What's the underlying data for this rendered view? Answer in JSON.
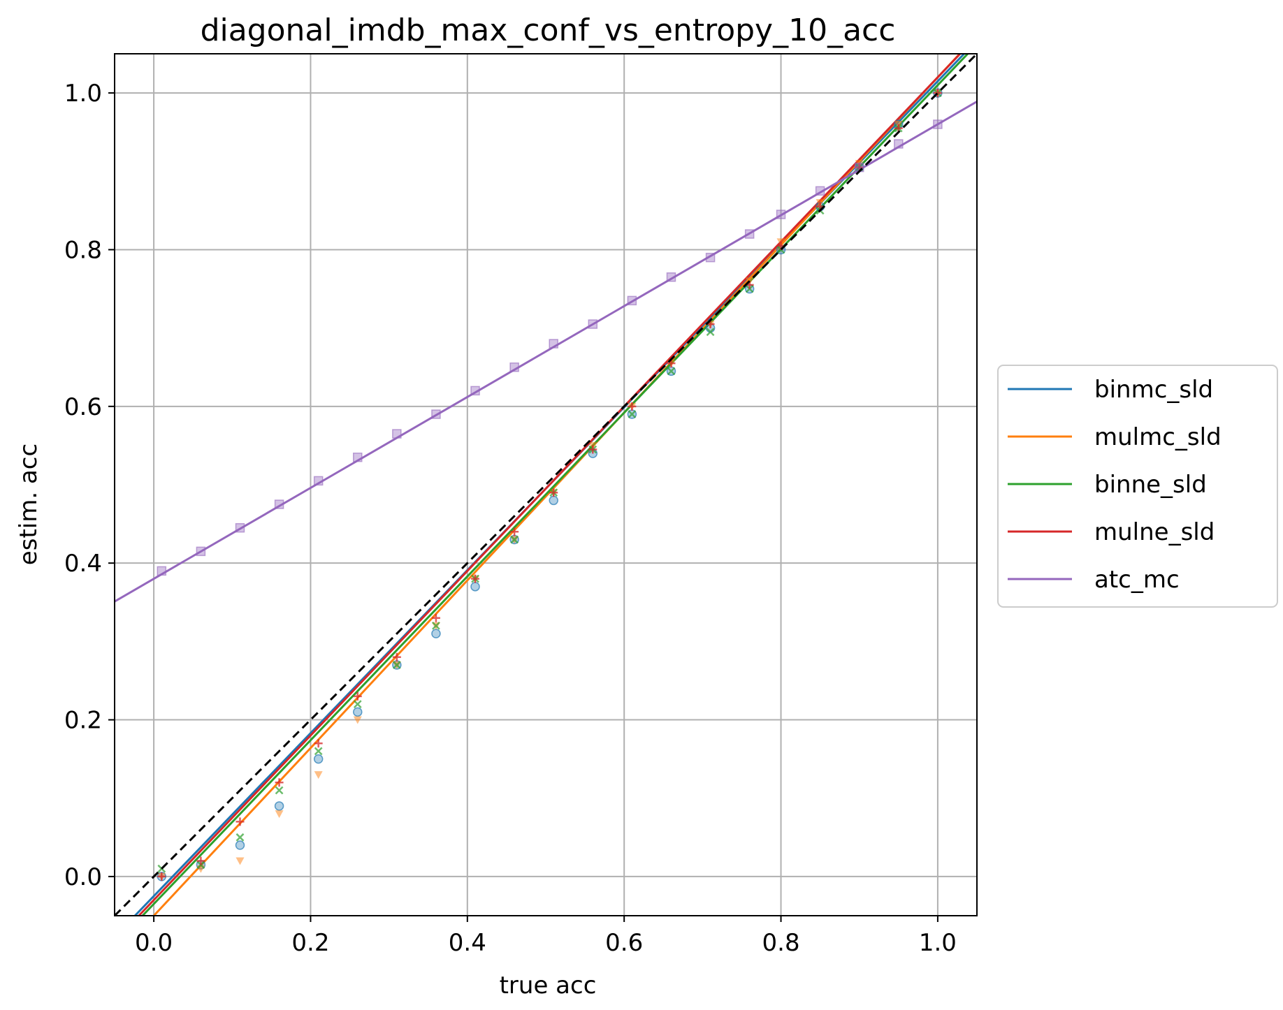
{
  "chart_data": {
    "type": "scatter",
    "title": "diagonal_imdb_max_conf_vs_entropy_10_acc",
    "xlabel": "true acc",
    "ylabel": "estim. acc",
    "xlim": [
      -0.05,
      1.05
    ],
    "ylim": [
      -0.05,
      1.05
    ],
    "x_ticks": [
      0.0,
      0.2,
      0.4,
      0.6,
      0.8,
      1.0
    ],
    "x_tick_labels": [
      "0.0",
      "0.2",
      "0.4",
      "0.6",
      "0.8",
      "1.0"
    ],
    "y_ticks": [
      0.0,
      0.2,
      0.4,
      0.6,
      0.8,
      1.0
    ],
    "y_tick_labels": [
      "0.0",
      "0.2",
      "0.4",
      "0.6",
      "0.8",
      "1.0"
    ],
    "grid": true,
    "legend_position": "outside-right",
    "reference_line": {
      "style": "dashed",
      "color": "#000000",
      "from": [
        -0.05,
        -0.05
      ],
      "to": [
        1.05,
        1.05
      ]
    },
    "x": [
      0.01,
      0.06,
      0.11,
      0.16,
      0.21,
      0.26,
      0.31,
      0.36,
      0.41,
      0.46,
      0.51,
      0.56,
      0.61,
      0.66,
      0.71,
      0.76,
      0.8,
      0.85,
      0.9,
      0.95,
      1.0
    ],
    "series": [
      {
        "name": "binmc_sld",
        "color": "#1f77b4",
        "marker": "circle",
        "fit": {
          "slope": 1.04,
          "intercept": -0.025
        },
        "values": [
          0.0,
          0.015,
          0.04,
          0.09,
          0.15,
          0.21,
          0.27,
          0.31,
          0.37,
          0.43,
          0.48,
          0.54,
          0.59,
          0.645,
          0.7,
          0.75,
          0.8,
          0.855,
          0.905,
          0.96,
          1.0
        ]
      },
      {
        "name": "mulmc_sld",
        "color": "#ff7f0e",
        "marker": "triangle-down",
        "fit": {
          "slope": 1.07,
          "intercept": -0.05
        },
        "values": [
          0.0,
          0.01,
          0.02,
          0.08,
          0.13,
          0.2,
          0.27,
          0.32,
          0.38,
          0.43,
          0.49,
          0.55,
          0.6,
          0.655,
          0.705,
          0.76,
          0.81,
          0.86,
          0.91,
          0.96,
          1.0
        ]
      },
      {
        "name": "binne_sld",
        "color": "#2ca02c",
        "marker": "x",
        "fit": {
          "slope": 1.045,
          "intercept": -0.035
        },
        "values": [
          0.01,
          0.015,
          0.05,
          0.11,
          0.16,
          0.22,
          0.27,
          0.32,
          0.38,
          0.43,
          0.49,
          0.545,
          0.59,
          0.645,
          0.695,
          0.75,
          0.8,
          0.85,
          0.905,
          0.955,
          1.0
        ]
      },
      {
        "name": "mulne_sld",
        "color": "#d62728",
        "marker": "plus",
        "fit": {
          "slope": 1.05,
          "intercept": -0.03
        },
        "values": [
          0.0,
          0.02,
          0.07,
          0.12,
          0.17,
          0.23,
          0.28,
          0.33,
          0.38,
          0.44,
          0.49,
          0.545,
          0.6,
          0.655,
          0.705,
          0.755,
          0.805,
          0.855,
          0.905,
          0.955,
          1.0
        ]
      },
      {
        "name": "atc_mc",
        "color": "#9467bd",
        "marker": "square",
        "fit": {
          "slope": 0.58,
          "intercept": 0.38
        },
        "values": [
          0.39,
          0.415,
          0.445,
          0.475,
          0.505,
          0.535,
          0.565,
          0.59,
          0.62,
          0.65,
          0.68,
          0.705,
          0.735,
          0.765,
          0.79,
          0.82,
          0.845,
          0.875,
          0.905,
          0.935,
          0.96
        ]
      }
    ]
  }
}
